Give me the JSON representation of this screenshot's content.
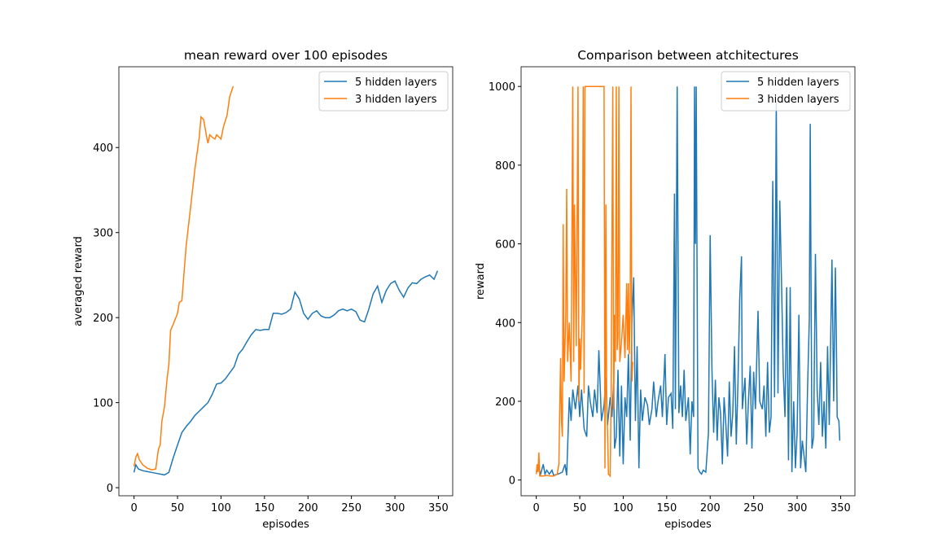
{
  "chart_data": [
    {
      "type": "line",
      "title": "mean reward over 100 episodes",
      "xlabel": "episodes",
      "ylabel": "averaged reward",
      "xlim": [
        -17.45,
        366.45
      ],
      "ylim": [
        -9.5,
        495
      ],
      "xticks": [
        0,
        50,
        100,
        150,
        200,
        250,
        300,
        350
      ],
      "yticks": [
        0,
        100,
        200,
        300,
        400
      ],
      "legend": "upper right",
      "series": [
        {
          "name": "5 hidden layers",
          "color": "#1f77b4",
          "x": [
            0,
            2,
            5,
            10,
            15,
            20,
            25,
            30,
            35,
            40,
            45,
            50,
            55,
            60,
            65,
            70,
            75,
            80,
            85,
            90,
            95,
            100,
            105,
            110,
            115,
            120,
            125,
            130,
            135,
            140,
            145,
            150,
            155,
            160,
            165,
            170,
            175,
            180,
            185,
            190,
            195,
            200,
            205,
            210,
            215,
            220,
            225,
            230,
            235,
            240,
            245,
            250,
            255,
            260,
            265,
            270,
            275,
            280,
            285,
            290,
            295,
            300,
            305,
            310,
            315,
            320,
            325,
            330,
            335,
            340,
            345,
            349
          ],
          "values": [
            18,
            27,
            22,
            20,
            19,
            18,
            17,
            16,
            15,
            18,
            35,
            50,
            65,
            72,
            78,
            85,
            90,
            95,
            100,
            110,
            122,
            123,
            128,
            135,
            142,
            157,
            163,
            172,
            180,
            186,
            185,
            186,
            186,
            205,
            205,
            204,
            206,
            210,
            230,
            222,
            205,
            198,
            205,
            208,
            202,
            200,
            200,
            203,
            208,
            210,
            208,
            210,
            207,
            197,
            195,
            210,
            228,
            237,
            218,
            232,
            240,
            243,
            232,
            224,
            235,
            241,
            240,
            245,
            248,
            250,
            245,
            255
          ]
        },
        {
          "name": "3 hidden layers",
          "color": "#ff7f0e",
          "x": [
            0,
            2,
            4,
            6,
            10,
            15,
            20,
            25,
            28,
            30,
            32,
            35,
            38,
            40,
            42,
            45,
            50,
            52,
            55,
            58,
            60,
            65,
            70,
            75,
            77,
            80,
            83,
            85,
            87,
            90,
            93,
            95,
            98,
            100,
            103,
            107,
            110,
            114
          ],
          "values": [
            25,
            36,
            40,
            33,
            27,
            23,
            21,
            22,
            45,
            50,
            78,
            95,
            128,
            145,
            185,
            192,
            205,
            218,
            220,
            260,
            285,
            330,
            375,
            412,
            436,
            433,
            415,
            405,
            415,
            412,
            410,
            415,
            412,
            410,
            425,
            438,
            460,
            472
          ]
        }
      ]
    },
    {
      "type": "line",
      "title": "Comparison between atchitectures",
      "xlabel": "episodes",
      "ylabel": "reward",
      "xlim": [
        -17.45,
        366.45
      ],
      "ylim": [
        -40,
        1050
      ],
      "xticks": [
        0,
        50,
        100,
        150,
        200,
        250,
        300,
        350
      ],
      "yticks": [
        0,
        200,
        400,
        600,
        800,
        1000
      ],
      "legend": "upper right",
      "series": [
        {
          "name": "5 hidden layers",
          "color": "#1f77b4",
          "x": [
            0,
            3,
            5,
            8,
            10,
            12,
            15,
            18,
            20,
            25,
            30,
            33,
            35,
            38,
            40,
            42,
            45,
            48,
            50,
            52,
            55,
            58,
            60,
            62,
            65,
            67,
            70,
            72,
            75,
            78,
            80,
            82,
            85,
            87,
            89,
            90,
            92,
            94,
            96,
            98,
            100,
            102,
            104,
            106,
            108,
            110,
            112,
            114,
            116,
            118,
            120,
            122,
            125,
            128,
            130,
            133,
            135,
            138,
            140,
            143,
            145,
            148,
            150,
            152,
            155,
            157,
            159,
            160,
            162,
            164,
            166,
            168,
            170,
            172,
            175,
            177,
            179,
            181,
            182,
            183,
            184,
            185,
            186,
            188,
            190,
            192,
            195,
            198,
            200,
            202,
            204,
            206,
            208,
            210,
            212,
            214,
            216,
            218,
            220,
            222,
            224,
            226,
            228,
            230,
            232,
            234,
            236,
            237,
            240,
            242,
            244,
            246,
            248,
            250,
            252,
            255,
            257,
            260,
            262,
            264,
            266,
            268,
            270,
            272,
            274,
            276,
            278,
            280,
            282,
            284,
            286,
            288,
            290,
            292,
            294,
            296,
            298,
            300,
            302,
            304,
            306,
            308,
            310,
            312,
            314,
            315,
            317,
            319,
            321,
            323,
            325,
            327,
            329,
            331,
            333,
            335,
            337,
            339,
            340,
            342,
            344,
            345,
            346,
            348,
            349
          ],
          "values": [
            20,
            30,
            15,
            40,
            15,
            25,
            15,
            25,
            12,
            15,
            20,
            40,
            12,
            210,
            150,
            230,
            180,
            240,
            160,
            230,
            130,
            110,
            240,
            200,
            160,
            230,
            170,
            330,
            150,
            190,
            260,
            140,
            210,
            160,
            250,
            80,
            110,
            280,
            60,
            240,
            40,
            210,
            160,
            320,
            100,
            400,
            515,
            150,
            340,
            30,
            230,
            150,
            210,
            190,
            140,
            180,
            250,
            160,
            200,
            240,
            160,
            320,
            140,
            210,
            220,
            130,
            728,
            180,
            1000,
            170,
            240,
            160,
            280,
            150,
            210,
            65,
            200,
            160,
            1000,
            600,
            1000,
            500,
            30,
            20,
            15,
            25,
            20,
            120,
            622,
            280,
            120,
            255,
            100,
            210,
            170,
            40,
            210,
            140,
            60,
            250,
            110,
            170,
            340,
            90,
            250,
            460,
            568,
            180,
            260,
            90,
            200,
            290,
            80,
            275,
            180,
            430,
            200,
            180,
            240,
            110,
            300,
            120,
            160,
            760,
            210,
            960,
            220,
            710,
            510,
            280,
            160,
            490,
            50,
            490,
            20,
            200,
            30,
            120,
            420,
            30,
            100,
            60,
            20,
            230,
            410,
            905,
            80,
            110,
            575,
            230,
            140,
            300,
            110,
            200,
            80,
            340,
            140,
            420,
            560,
            200,
            540,
            380,
            160,
            150,
            100
          ]
        },
        {
          "name": "3 hidden layers",
          "color": "#ff7f0e",
          "x": [
            0,
            1,
            2,
            3,
            4,
            8,
            12,
            16,
            20,
            24,
            26,
            28,
            29,
            30,
            31,
            32,
            34,
            35,
            36,
            38,
            40,
            42,
            43,
            44,
            46,
            48,
            49,
            50,
            51,
            53,
            54,
            55,
            56,
            60,
            65,
            70,
            75,
            78,
            79,
            80,
            81,
            82,
            83,
            85,
            86,
            88,
            89,
            90,
            91,
            92,
            93,
            94,
            95,
            96,
            98,
            100,
            102,
            104,
            105,
            106,
            107,
            108,
            109,
            110,
            111
          ],
          "values": [
            15,
            40,
            20,
            70,
            10,
            10,
            12,
            10,
            10,
            15,
            40,
            310,
            150,
            110,
            650,
            250,
            420,
            740,
            300,
            400,
            250,
            1000,
            300,
            700,
            340,
            1000,
            200,
            360,
            280,
            430,
            1000,
            220,
            1000,
            1000,
            1000,
            1000,
            1000,
            1000,
            30,
            700,
            200,
            120,
            15,
            10,
            200,
            1000,
            180,
            420,
            300,
            1000,
            330,
            360,
            1000,
            300,
            350,
            420,
            310,
            500,
            330,
            500,
            320,
            430,
            1000,
            250,
            300
          ]
        }
      ]
    }
  ]
}
